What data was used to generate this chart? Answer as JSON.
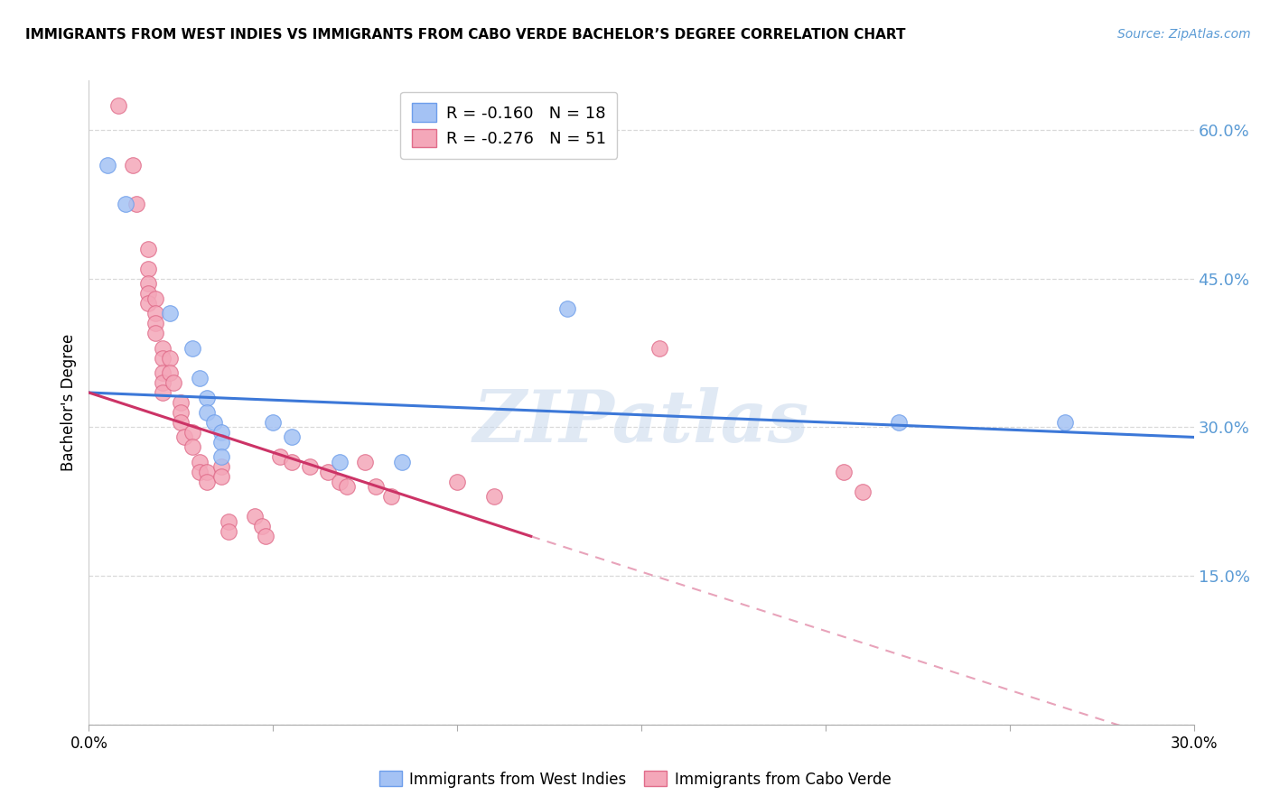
{
  "title": "IMMIGRANTS FROM WEST INDIES VS IMMIGRANTS FROM CABO VERDE BACHELOR’S DEGREE CORRELATION CHART",
  "source": "Source: ZipAtlas.com",
  "ylabel": "Bachelor's Degree",
  "legend_label_blue": "R = -0.160   N = 18",
  "legend_label_pink": "R = -0.276   N = 51",
  "xlim": [
    0.0,
    0.3
  ],
  "ylim": [
    0.0,
    0.65
  ],
  "xticks": [
    0.0,
    0.05,
    0.1,
    0.15,
    0.2,
    0.25,
    0.3
  ],
  "yticks": [
    0.0,
    0.15,
    0.3,
    0.45,
    0.6
  ],
  "yticklabels_right": [
    "",
    "15.0%",
    "30.0%",
    "45.0%",
    "60.0%"
  ],
  "watermark": "ZIPatlas",
  "background_color": "#ffffff",
  "blue_color": "#a4c2f4",
  "pink_color": "#f4a7b9",
  "blue_edge_color": "#6d9eeb",
  "pink_edge_color": "#e06c8a",
  "blue_line_color": "#3c78d8",
  "pink_line_color": "#cc3366",
  "blue_scatter": [
    [
      0.005,
      0.565
    ],
    [
      0.01,
      0.525
    ],
    [
      0.022,
      0.415
    ],
    [
      0.028,
      0.38
    ],
    [
      0.03,
      0.35
    ],
    [
      0.032,
      0.33
    ],
    [
      0.032,
      0.315
    ],
    [
      0.034,
      0.305
    ],
    [
      0.036,
      0.295
    ],
    [
      0.036,
      0.285
    ],
    [
      0.036,
      0.27
    ],
    [
      0.05,
      0.305
    ],
    [
      0.055,
      0.29
    ],
    [
      0.068,
      0.265
    ],
    [
      0.085,
      0.265
    ],
    [
      0.13,
      0.42
    ],
    [
      0.22,
      0.305
    ],
    [
      0.265,
      0.305
    ]
  ],
  "pink_scatter": [
    [
      0.008,
      0.625
    ],
    [
      0.012,
      0.565
    ],
    [
      0.013,
      0.525
    ],
    [
      0.016,
      0.48
    ],
    [
      0.016,
      0.46
    ],
    [
      0.016,
      0.445
    ],
    [
      0.016,
      0.435
    ],
    [
      0.016,
      0.425
    ],
    [
      0.018,
      0.43
    ],
    [
      0.018,
      0.415
    ],
    [
      0.018,
      0.405
    ],
    [
      0.018,
      0.395
    ],
    [
      0.02,
      0.38
    ],
    [
      0.02,
      0.37
    ],
    [
      0.02,
      0.355
    ],
    [
      0.02,
      0.345
    ],
    [
      0.02,
      0.335
    ],
    [
      0.022,
      0.37
    ],
    [
      0.022,
      0.355
    ],
    [
      0.023,
      0.345
    ],
    [
      0.025,
      0.325
    ],
    [
      0.025,
      0.315
    ],
    [
      0.025,
      0.305
    ],
    [
      0.026,
      0.29
    ],
    [
      0.028,
      0.295
    ],
    [
      0.028,
      0.28
    ],
    [
      0.03,
      0.265
    ],
    [
      0.03,
      0.255
    ],
    [
      0.032,
      0.255
    ],
    [
      0.032,
      0.245
    ],
    [
      0.036,
      0.26
    ],
    [
      0.036,
      0.25
    ],
    [
      0.038,
      0.205
    ],
    [
      0.038,
      0.195
    ],
    [
      0.045,
      0.21
    ],
    [
      0.047,
      0.2
    ],
    [
      0.048,
      0.19
    ],
    [
      0.052,
      0.27
    ],
    [
      0.055,
      0.265
    ],
    [
      0.06,
      0.26
    ],
    [
      0.065,
      0.255
    ],
    [
      0.068,
      0.245
    ],
    [
      0.07,
      0.24
    ],
    [
      0.075,
      0.265
    ],
    [
      0.078,
      0.24
    ],
    [
      0.082,
      0.23
    ],
    [
      0.1,
      0.245
    ],
    [
      0.11,
      0.23
    ],
    [
      0.155,
      0.38
    ],
    [
      0.205,
      0.255
    ],
    [
      0.21,
      0.235
    ]
  ],
  "blue_line": [
    [
      0.0,
      0.335
    ],
    [
      0.3,
      0.29
    ]
  ],
  "pink_line_solid": [
    [
      0.0,
      0.335
    ],
    [
      0.12,
      0.19
    ]
  ],
  "pink_line_dashed": [
    [
      0.12,
      0.19
    ],
    [
      0.3,
      -0.025
    ]
  ],
  "bottom_legend_blue": "Immigrants from West Indies",
  "bottom_legend_pink": "Immigrants from Cabo Verde"
}
